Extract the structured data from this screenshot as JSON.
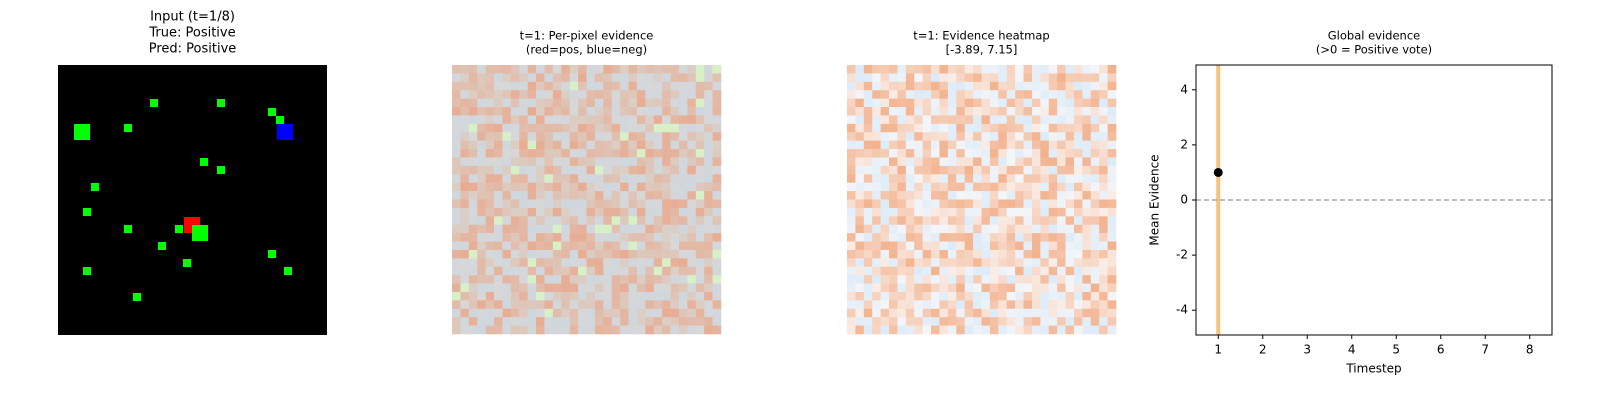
{
  "chart_data": [
    {
      "type": "image",
      "title": [
        "Input (t=1/8)",
        "True: Positive",
        "Pred: Positive"
      ],
      "title_color": "#008000"
    },
    {
      "type": "image",
      "title": [
        "t=1: Per-pixel evidence",
        "(red=pos, blue=neg)"
      ],
      "title_color": "#000000"
    },
    {
      "type": "image",
      "title": [
        "t=1: Evidence heatmap",
        "[-3.89, 7.15]"
      ],
      "title_color": "#000000"
    },
    {
      "type": "scatter",
      "title": [
        "Global evidence",
        "(>0 = Positive vote)"
      ],
      "title_color": "#000000",
      "xlabel": "Timestep",
      "ylabel": "Mean Evidence",
      "x": [
        1
      ],
      "values": [
        1
      ],
      "color": "#000000",
      "xlim": [
        0.5,
        8.5
      ],
      "ylim": [
        -4.9,
        4.9
      ],
      "xticks": [
        1,
        2,
        3,
        4,
        5,
        6,
        7,
        8
      ],
      "yticks": [
        -4,
        -2,
        0,
        2,
        4
      ],
      "vline": {
        "x": 1,
        "color": "#f7c27e"
      },
      "hline": {
        "y": 0,
        "color": "#999999",
        "style": "dashed"
      }
    }
  ]
}
